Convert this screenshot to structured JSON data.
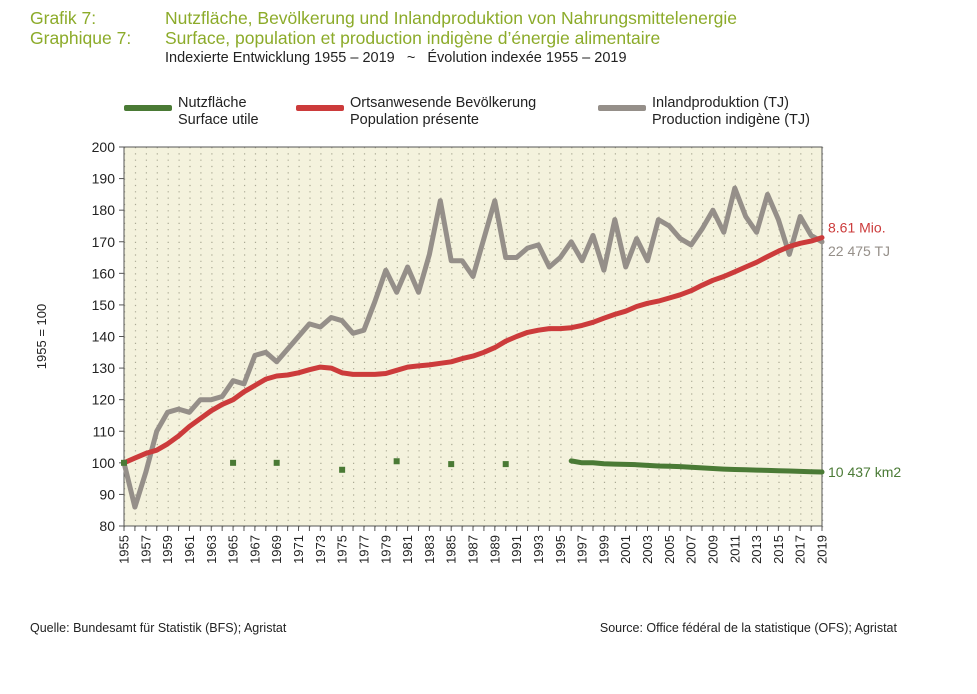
{
  "header": {
    "grafik_label": "Grafik 7:",
    "grafik_title": "Nutzfläche, Bevölkerung und Inlandproduktion von Nahrungsmittelenergie",
    "graphique_label": "Graphique 7:",
    "graphique_title": "Surface, population et production indigène d’énergie alimentaire",
    "subtitle": "Indexierte Entwicklung 1955 – 2019   ~   Évolution indexée 1955 – 2019"
  },
  "legend": [
    {
      "line1": "Nutzfläche",
      "line2": "Surface utile",
      "color": "#4a7a35"
    },
    {
      "line1": "Ortsanwesende Bevölkerung",
      "line2": "Population présente",
      "color": "#cc3b3b"
    },
    {
      "line1": "Inlandproduktion (TJ)",
      "line2": "Production indigène (TJ)",
      "color": "#958f89"
    }
  ],
  "end_labels": {
    "population": "8.61 Mio.",
    "production": "22 475 TJ",
    "surface": "10 437 km2"
  },
  "source": {
    "de": "Quelle: Bundesamt für Statistik (BFS); Agristat",
    "fr": "Source: Office fédéral de la statistique (OFS); Agristat"
  },
  "chart_data": {
    "type": "line",
    "ylabel": "1955 = 100",
    "ylim": [
      80,
      200
    ],
    "yticks": [
      80,
      90,
      100,
      110,
      120,
      130,
      140,
      150,
      160,
      170,
      180,
      190,
      200
    ],
    "xlim": [
      1955,
      2019
    ],
    "xtick_labels": [
      "1955",
      "1957",
      "1959",
      "1961",
      "1963",
      "1965",
      "1967",
      "1969",
      "1971",
      "1973",
      "1975",
      "1977",
      "1979",
      "1981",
      "1983",
      "1985",
      "1987",
      "1989",
      "1991",
      "1993",
      "1995",
      "1997",
      "1999",
      "2001",
      "2003",
      "2005",
      "2007",
      "2009",
      "2011",
      "2013",
      "2015",
      "2017",
      "2019"
    ],
    "grid": true,
    "legend_position": "top",
    "colors": {
      "surface": "#4a7a35",
      "population": "#cc3b3b",
      "production": "#958f89",
      "plot_bg": "#f4f2dd"
    },
    "series": [
      {
        "name": "Inlandproduktion (TJ)",
        "key": "production",
        "x": [
          1955,
          1956,
          1957,
          1958,
          1959,
          1960,
          1961,
          1962,
          1963,
          1964,
          1965,
          1966,
          1967,
          1968,
          1969,
          1970,
          1971,
          1972,
          1973,
          1974,
          1975,
          1976,
          1977,
          1978,
          1979,
          1980,
          1981,
          1982,
          1983,
          1984,
          1985,
          1986,
          1987,
          1988,
          1989,
          1990,
          1991,
          1992,
          1993,
          1994,
          1995,
          1996,
          1997,
          1998,
          1999,
          2000,
          2001,
          2002,
          2003,
          2004,
          2005,
          2006,
          2007,
          2008,
          2009,
          2010,
          2011,
          2012,
          2013,
          2014,
          2015,
          2016,
          2017,
          2018,
          2019
        ],
        "values": [
          100,
          86,
          97,
          110,
          116,
          117,
          116,
          120,
          120,
          121,
          126,
          125,
          134,
          135,
          132,
          136,
          140,
          144,
          143,
          146,
          145,
          141,
          142,
          151,
          161,
          154,
          162,
          154,
          166,
          183,
          164,
          164,
          159,
          171,
          183,
          165,
          165,
          168,
          169,
          162,
          165,
          170,
          164,
          172,
          161,
          177,
          162,
          171,
          164,
          177,
          175,
          171,
          169,
          174,
          180,
          173,
          187,
          178,
          173,
          185,
          177,
          166,
          178,
          172,
          170
        ]
      },
      {
        "name": "Ortsanwesende Bevölkerung",
        "key": "population",
        "x": [
          1955,
          1956,
          1957,
          1958,
          1959,
          1960,
          1961,
          1962,
          1963,
          1964,
          1965,
          1966,
          1967,
          1968,
          1969,
          1970,
          1971,
          1972,
          1973,
          1974,
          1975,
          1976,
          1977,
          1978,
          1979,
          1980,
          1981,
          1982,
          1983,
          1984,
          1985,
          1986,
          1987,
          1988,
          1989,
          1990,
          1991,
          1992,
          1993,
          1994,
          1995,
          1996,
          1997,
          1998,
          1999,
          2000,
          2001,
          2002,
          2003,
          2004,
          2005,
          2006,
          2007,
          2008,
          2009,
          2010,
          2011,
          2012,
          2013,
          2014,
          2015,
          2016,
          2017,
          2018,
          2019
        ],
        "values": [
          100,
          101.5,
          103,
          104,
          106,
          108.5,
          111.5,
          114,
          116.5,
          118.5,
          120,
          122.5,
          124.5,
          126.5,
          127.5,
          127.8,
          128.5,
          129.5,
          130.3,
          130,
          128.5,
          128,
          128,
          128,
          128.3,
          129.3,
          130.3,
          130.7,
          131,
          131.5,
          132,
          133,
          133.8,
          135,
          136.5,
          138.5,
          140,
          141.3,
          142,
          142.5,
          142.5,
          142.8,
          143.5,
          144.5,
          145.8,
          147,
          148,
          149.5,
          150.5,
          151.2,
          152.2,
          153.2,
          154.5,
          156.2,
          157.8,
          159,
          160.5,
          162,
          163.5,
          165.3,
          167,
          168.5,
          169.5,
          170.2,
          171.3
        ]
      },
      {
        "name": "Nutzfläche",
        "key": "surface",
        "points_x": [
          1955,
          1965,
          1969,
          1975,
          1980,
          1985,
          1990
        ],
        "points_values": [
          100,
          100,
          100,
          97.8,
          100.5,
          99.6,
          99.6
        ],
        "x": [
          1996,
          1997,
          1998,
          1999,
          2000,
          2001,
          2002,
          2003,
          2004,
          2005,
          2006,
          2007,
          2008,
          2009,
          2010,
          2011,
          2012,
          2013,
          2014,
          2015,
          2016,
          2017,
          2018,
          2019
        ],
        "values": [
          100.6,
          100,
          100,
          99.7,
          99.6,
          99.5,
          99.4,
          99.2,
          99,
          98.9,
          98.8,
          98.6,
          98.4,
          98.2,
          98,
          97.9,
          97.8,
          97.7,
          97.6,
          97.5,
          97.4,
          97.3,
          97.2,
          97.1
        ]
      }
    ]
  }
}
